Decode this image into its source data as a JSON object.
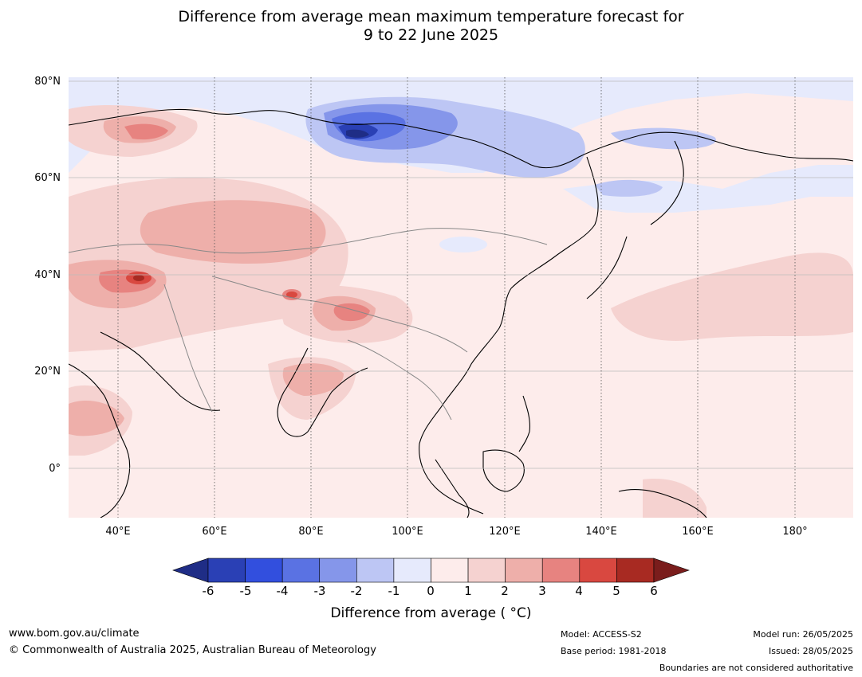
{
  "title_line1": "Difference from average mean maximum temperature forecast for",
  "title_line2": "9 to 22 June 2025",
  "map": {
    "region": "Asia",
    "lat_labels": [
      "80°N",
      "60°N",
      "40°N",
      "20°N",
      "0°"
    ],
    "lon_labels": [
      "40°E",
      "60°E",
      "80°E",
      "100°E",
      "120°E",
      "140°E",
      "160°E",
      "180°"
    ],
    "lat_range": [
      -10,
      80
    ],
    "lon_range": [
      30,
      192
    ]
  },
  "colorbar": {
    "ticks": [
      "-6",
      "-5",
      "-4",
      "-3",
      "-2",
      "-1",
      "0",
      "1",
      "2",
      "3",
      "4",
      "5",
      "6"
    ],
    "colors": [
      "#1f2d86",
      "#2a40b5",
      "#324fde",
      "#5a72e3",
      "#8596ea",
      "#bdc6f4",
      "#e6eafc",
      "#fdeceb",
      "#f5d2d0",
      "#eeafaa",
      "#e78380",
      "#d94840",
      "#a82a22",
      "#7a1d1c"
    ],
    "label": "Difference from average ( °C)"
  },
  "footer": {
    "website": "www.bom.gov.au/climate",
    "copyright": "© Commonwealth of Australia 2025, Australian Bureau of Meteorology",
    "model": "Model: ACCESS-S2",
    "base_period": "Base period: 1981-2018",
    "model_run": "Model run: 26/05/2025",
    "issued": "Issued: 28/05/2025",
    "disclaimer": "Boundaries are not considered authoritative"
  }
}
